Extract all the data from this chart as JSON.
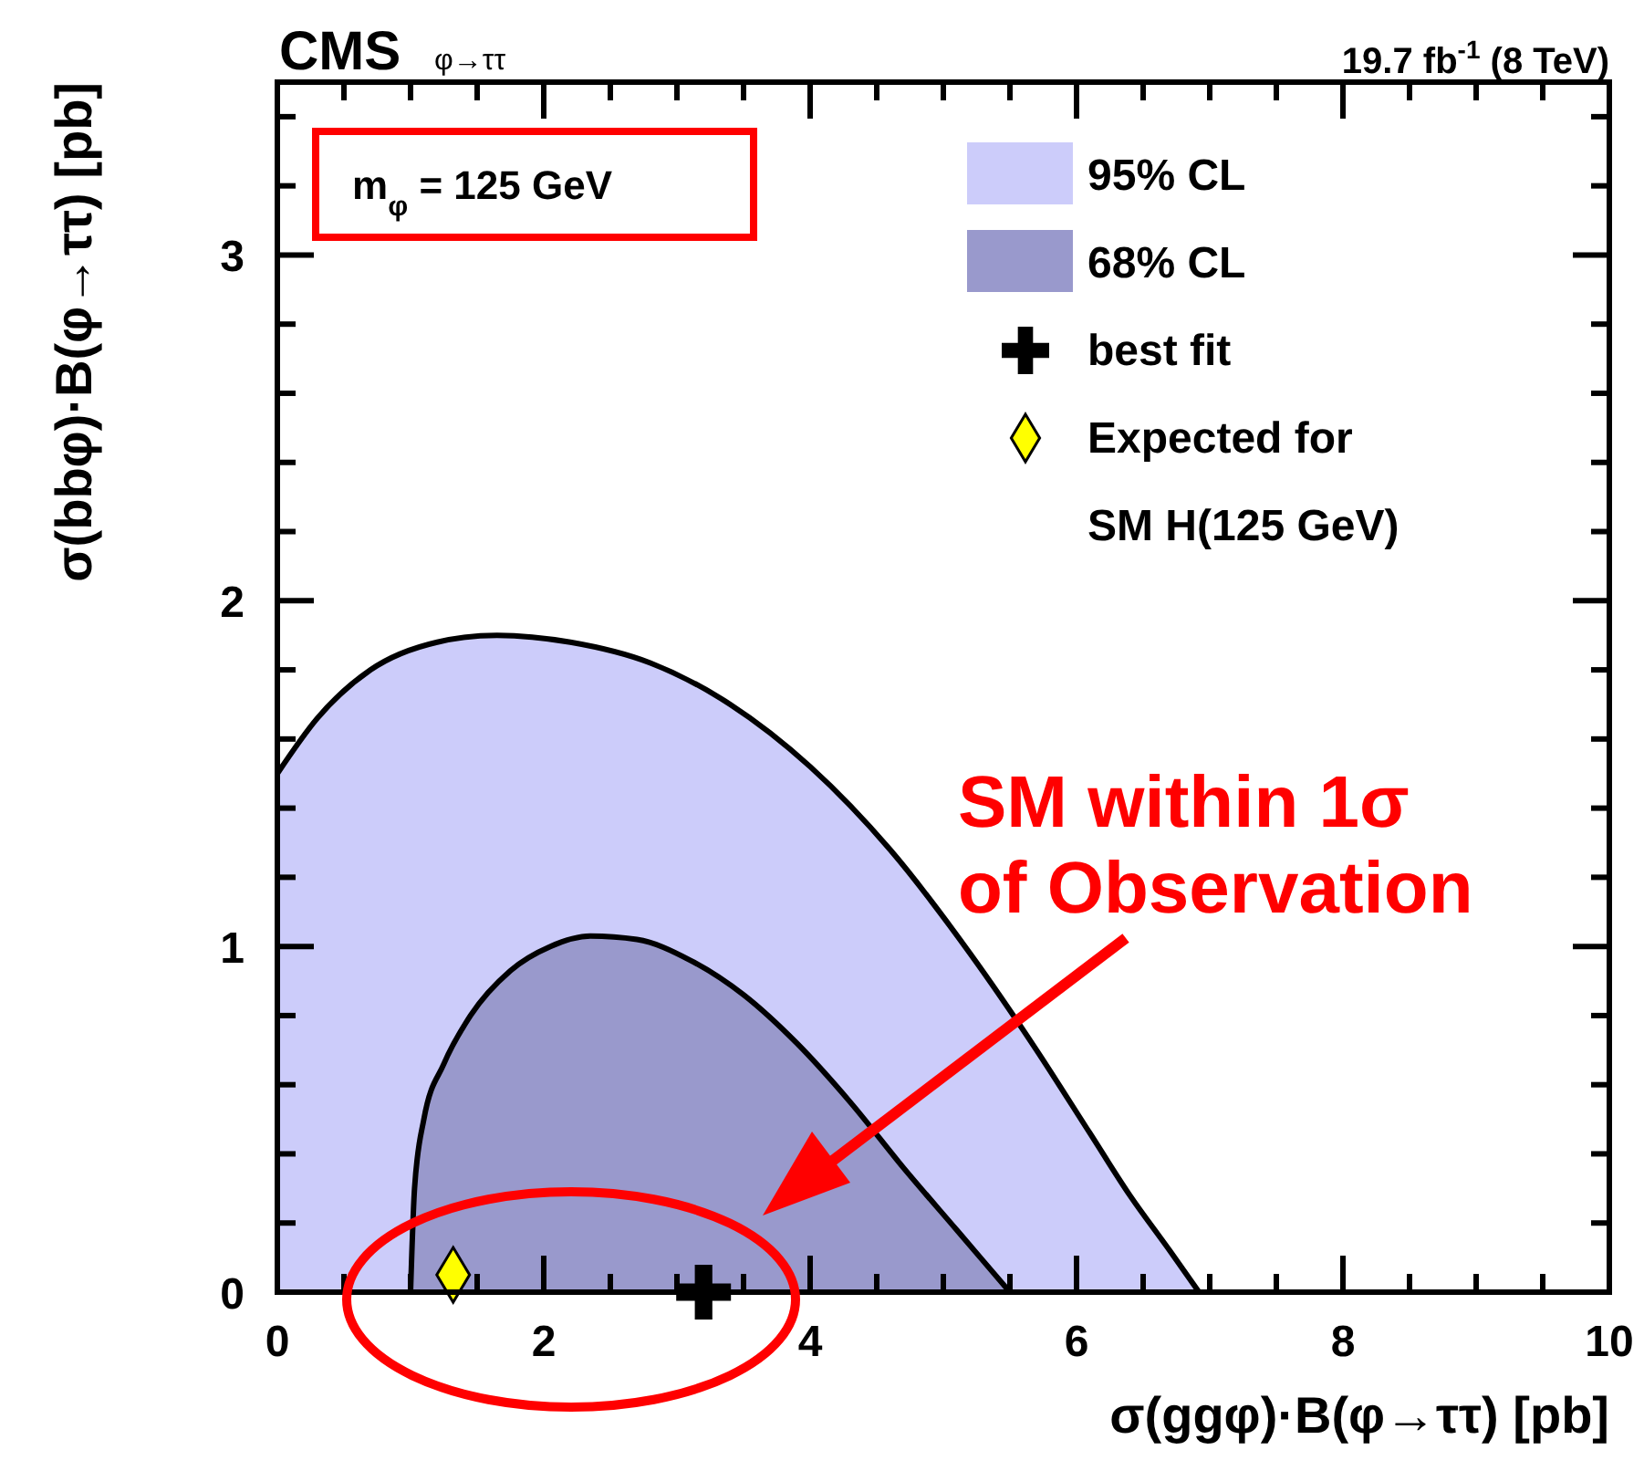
{
  "chart_data": {
    "type": "area",
    "title": "CMS",
    "subtitle": "φ→ττ",
    "xlabel": "σ(ggφ)·B(φ→ττ) [pb]",
    "ylabel": "σ(bbφ)·B(φ→ττ) [pb]",
    "annotations": [
      "19.7 fb$^{-1}$ (8 TeV)",
      "m$_{φ}$ = 125 GeV",
      "SM within 1σ of Observation"
    ],
    "xlim": [
      0,
      10
    ],
    "ylim": [
      0,
      3.5
    ],
    "xticks": [
      0,
      {
        "value": 0.5,
        "label": null
      },
      {
        "value": 1,
        "label": null
      },
      {
        "value": 1.5,
        "label": null
      },
      2,
      {
        "value": 2.5,
        "label": null
      },
      {
        "value": 3,
        "label": null
      },
      {
        "value": 3.5,
        "label": null
      },
      4,
      {
        "value": 4.5,
        "label": null
      },
      {
        "value": 5,
        "label": null
      },
      {
        "value": 5.5,
        "label": null
      },
      6,
      {
        "value": 6.5,
        "label": null
      },
      {
        "value": 7,
        "label": null
      },
      {
        "value": 7.5,
        "label": null
      },
      8,
      {
        "value": 8.5,
        "label": null
      },
      {
        "value": 9,
        "label": null
      },
      {
        "value": 9.5,
        "label": null
      },
      10
    ],
    "yticks": [
      0,
      {
        "value": 0.2,
        "label": null
      },
      {
        "value": 0.4,
        "label": null
      },
      {
        "value": 0.6,
        "label": null
      },
      {
        "value": 0.8,
        "label": null
      },
      1,
      {
        "value": 1.2,
        "label": null
      },
      {
        "value": 1.4,
        "label": null
      },
      {
        "value": 1.6,
        "label": null
      },
      {
        "value": 1.8,
        "label": null
      },
      2,
      {
        "value": 2.2,
        "label": null
      },
      {
        "value": 2.4,
        "label": null
      },
      {
        "value": 2.6,
        "label": null
      },
      {
        "value": 2.8,
        "label": null
      },
      3,
      {
        "value": 3.2,
        "label": null
      },
      {
        "value": 3.4,
        "label": null
      }
    ],
    "grid": false,
    "legend": "top right",
    "series": [
      {
        "name": "95% CL",
        "color": "#ccccfa",
        "x": [
          0,
          0.3,
          0.7,
          1.2,
          1.65,
          2.2,
          2.8,
          3.4,
          4.0,
          4.6,
          5.2,
          5.7,
          6.1,
          6.4,
          6.7,
          6.92
        ],
        "values": [
          1.5,
          1.66,
          1.8,
          1.88,
          1.9,
          1.88,
          1.82,
          1.7,
          1.52,
          1.28,
          0.98,
          0.7,
          0.46,
          0.28,
          0.12,
          0
        ]
      },
      {
        "name": "68% CL",
        "color": "#9999cc",
        "x": [
          1.0,
          1.03,
          1.1,
          1.25,
          1.45,
          1.75,
          2.05,
          2.35,
          2.7,
          3.1,
          3.5,
          3.9,
          4.3,
          4.7,
          5.1,
          5.5
        ],
        "values": [
          0,
          0.3,
          0.5,
          0.66,
          0.8,
          0.93,
          1.0,
          1.03,
          1.02,
          0.96,
          0.86,
          0.72,
          0.55,
          0.36,
          0.18,
          0
        ]
      },
      {
        "name": "best fit",
        "type": "scatter",
        "marker": "cross",
        "color": "#000000",
        "x": [
          3.2
        ],
        "values": [
          0
        ]
      },
      {
        "name": "Expected for SM H(125 GeV)",
        "type": "scatter",
        "marker": "diamond",
        "color": "#ffff00",
        "x": [
          1.32
        ],
        "values": [
          0.05
        ]
      }
    ]
  }
}
